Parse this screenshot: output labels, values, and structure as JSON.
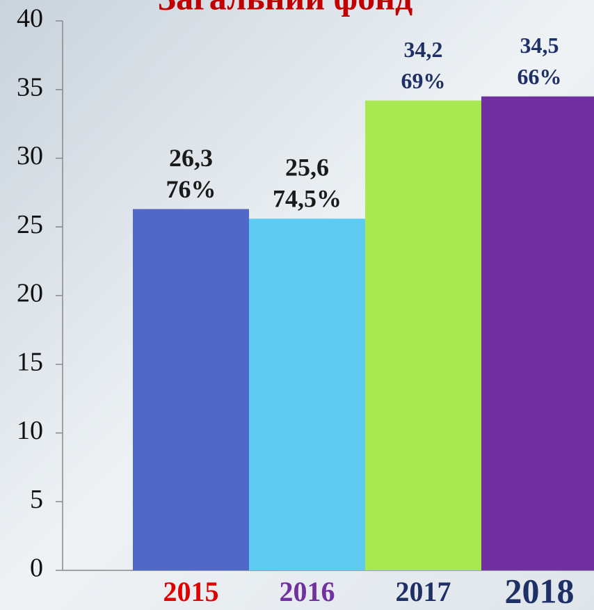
{
  "chart_data": {
    "type": "bar",
    "title": "Загальний фонд",
    "categories": [
      "2015",
      "2016",
      "2017",
      "2018"
    ],
    "values": [
      26.3,
      25.6,
      34.2,
      34.5
    ],
    "value_labels": [
      "26,3",
      "25,6",
      "34,2",
      "34,5"
    ],
    "share_labels": [
      "76%",
      "74,5%",
      "69%",
      "66%"
    ],
    "colors": [
      "#5068c8",
      "#5ecbf2",
      "#a8e850",
      "#7030a0"
    ],
    "label_colors": [
      "#1a1a1a",
      "#1a1a1a",
      "#1f3066",
      "#1f3066"
    ],
    "category_label_colors": [
      "#e00000",
      "#7030a0",
      "#1f3066",
      "#1f3066"
    ],
    "ylim": [
      0,
      40
    ],
    "yticks": [
      0,
      5,
      10,
      15,
      20,
      25,
      30,
      35,
      40
    ]
  }
}
